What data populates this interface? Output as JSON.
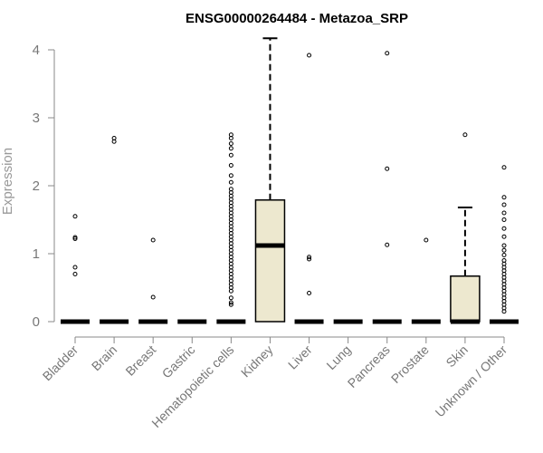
{
  "chart_data": {
    "type": "box",
    "title": "ENSG00000264484 - Metazoa_SRP",
    "xlabel": "",
    "ylabel": "Expression",
    "ylim": [
      0,
      4.2
    ],
    "yticks": [
      0,
      1,
      2,
      3,
      4
    ],
    "grid": false,
    "box_fill": "#ede8cf",
    "categories": [
      "Bladder",
      "Brain",
      "Breast",
      "Gastric",
      "Hematopoietic cells",
      "Kidney",
      "Liver",
      "Lung",
      "Pancreas",
      "Prostate",
      "Skin",
      "Unknown / Other"
    ],
    "series": [
      {
        "category": "Bladder",
        "q1": 0,
        "median": 0,
        "q3": 0,
        "whisker_low": 0,
        "whisker_high": 0,
        "outliers": [
          1.55,
          1.24,
          1.22,
          0.8,
          0.7
        ]
      },
      {
        "category": "Brain",
        "q1": 0,
        "median": 0,
        "q3": 0,
        "whisker_low": 0,
        "whisker_high": 0,
        "outliers": [
          2.7,
          2.65
        ]
      },
      {
        "category": "Breast",
        "q1": 0,
        "median": 0,
        "q3": 0,
        "whisker_low": 0,
        "whisker_high": 0,
        "outliers": [
          1.2,
          0.36
        ]
      },
      {
        "category": "Gastric",
        "q1": 0,
        "median": 0,
        "q3": 0,
        "whisker_low": 0,
        "whisker_high": 0,
        "outliers": []
      },
      {
        "category": "Hematopoietic cells",
        "q1": 0,
        "median": 0,
        "q3": 0,
        "whisker_low": 0,
        "whisker_high": 0,
        "outliers": [
          2.75,
          2.7,
          2.62,
          2.55,
          2.45,
          2.3,
          2.15,
          2.05,
          1.95,
          1.9,
          1.85,
          1.8,
          1.75,
          1.7,
          1.65,
          1.6,
          1.55,
          1.5,
          1.45,
          1.4,
          1.35,
          1.3,
          1.25,
          1.2,
          1.15,
          1.1,
          1.05,
          1.0,
          0.95,
          0.9,
          0.85,
          0.8,
          0.75,
          0.7,
          0.65,
          0.6,
          0.55,
          0.5,
          0.45,
          0.35,
          0.28,
          0.25
        ]
      },
      {
        "category": "Kidney",
        "q1": 0,
        "median": 1.12,
        "q3": 1.79,
        "whisker_low": 0,
        "whisker_high": 4.17,
        "outliers": []
      },
      {
        "category": "Liver",
        "q1": 0,
        "median": 0,
        "q3": 0,
        "whisker_low": 0,
        "whisker_high": 0,
        "outliers": [
          3.92,
          0.95,
          0.92,
          0.42
        ]
      },
      {
        "category": "Lung",
        "q1": 0,
        "median": 0,
        "q3": 0,
        "whisker_low": 0,
        "whisker_high": 0,
        "outliers": []
      },
      {
        "category": "Pancreas",
        "q1": 0,
        "median": 0,
        "q3": 0,
        "whisker_low": 0,
        "whisker_high": 0,
        "outliers": [
          3.95,
          2.25,
          1.13
        ]
      },
      {
        "category": "Prostate",
        "q1": 0,
        "median": 0,
        "q3": 0,
        "whisker_low": 0,
        "whisker_high": 0,
        "outliers": [
          1.2
        ]
      },
      {
        "category": "Skin",
        "q1": 0,
        "median": 0,
        "q3": 0.67,
        "whisker_low": 0,
        "whisker_high": 1.68,
        "outliers": [
          2.75
        ]
      },
      {
        "category": "Unknown / Other",
        "q1": 0,
        "median": 0,
        "q3": 0,
        "whisker_low": 0,
        "whisker_high": 0,
        "outliers": [
          2.27,
          1.83,
          1.72,
          1.6,
          1.5,
          1.37,
          1.25,
          1.12,
          1.05,
          0.98,
          0.9,
          0.85,
          0.8,
          0.75,
          0.7,
          0.65,
          0.6,
          0.55,
          0.5,
          0.45,
          0.4,
          0.35,
          0.3,
          0.25,
          0.2,
          0.15
        ]
      }
    ]
  }
}
